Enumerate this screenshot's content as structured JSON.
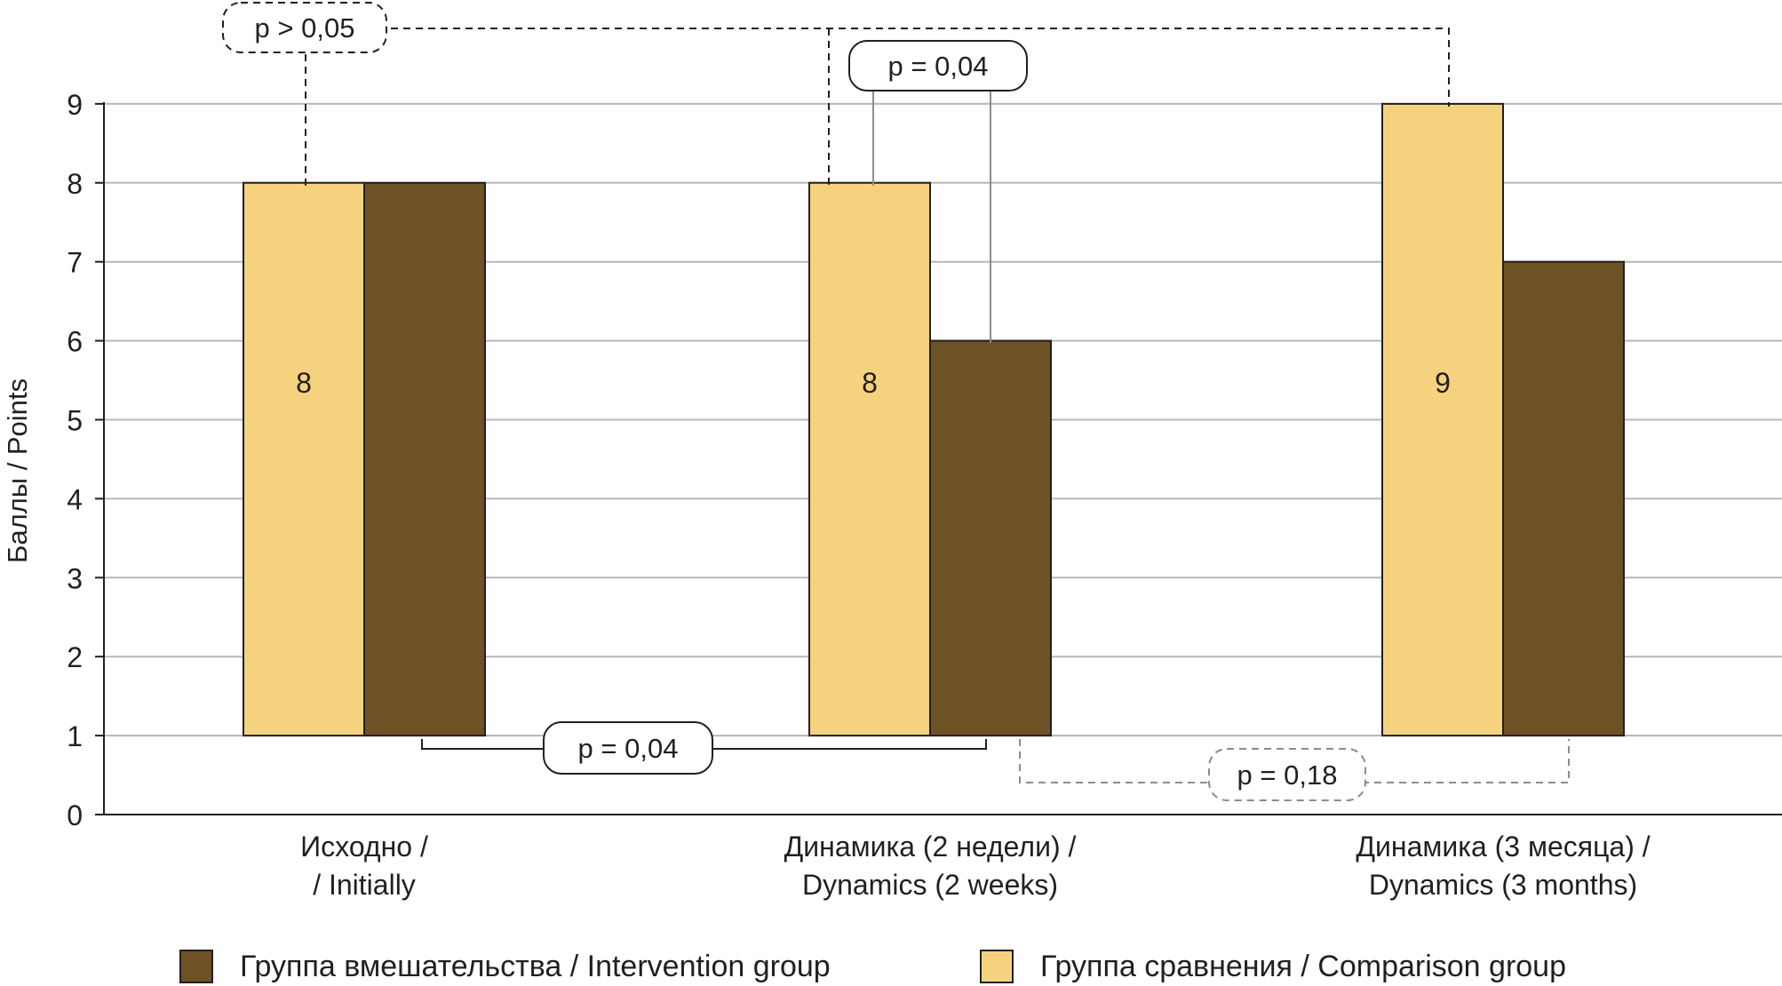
{
  "chart_data": {
    "type": "bar",
    "ylabel": "Баллы / Points",
    "ylim": [
      0,
      9
    ],
    "yticks": [
      "0",
      "1",
      "2",
      "3",
      "4",
      "5",
      "6",
      "7",
      "8",
      "9"
    ],
    "categories": [
      [
        "Исходно /",
        "/ Initially"
      ],
      [
        "Динамика (2 недели) /",
        "Dynamics (2 weeks)"
      ],
      [
        "Динамика (3 месяца) /",
        "Dynamics (3 months)"
      ]
    ],
    "bar_base": 1,
    "series": [
      {
        "name": "Группа сравнения / Comparison group",
        "values": [
          8,
          8,
          9
        ],
        "data_labels": [
          "8",
          "8",
          "9"
        ],
        "color": "#f5d27e"
      },
      {
        "name": "Группа вмешательства / Intervention group",
        "values": [
          8,
          6,
          7
        ],
        "color": "#6e5125"
      }
    ],
    "annotations": [
      {
        "label": "p > 0,05",
        "style": "dashed",
        "between": "comparison group: Исходно, Динамика (2 недели), Динамика (3 месяца)"
      },
      {
        "label": "p = 0,04",
        "style": "solid",
        "between": "Динамика (2 недели): comparison vs intervention"
      },
      {
        "label": "p = 0,04",
        "style": "solid",
        "between": "intervention group: Исходно vs Динамика (2 недели)"
      },
      {
        "label": "p = 0,18",
        "style": "dashed",
        "between": "intervention group: Динамика (2 недели) vs Динамика (3 месяца)"
      }
    ]
  },
  "legend": {
    "intervention_label": "Группа вмешательства / Intervention group",
    "intervention_color": "#6e5125",
    "comparison_label": "Группа сравнения / Comparison group",
    "comparison_color": "#f5d27e"
  }
}
